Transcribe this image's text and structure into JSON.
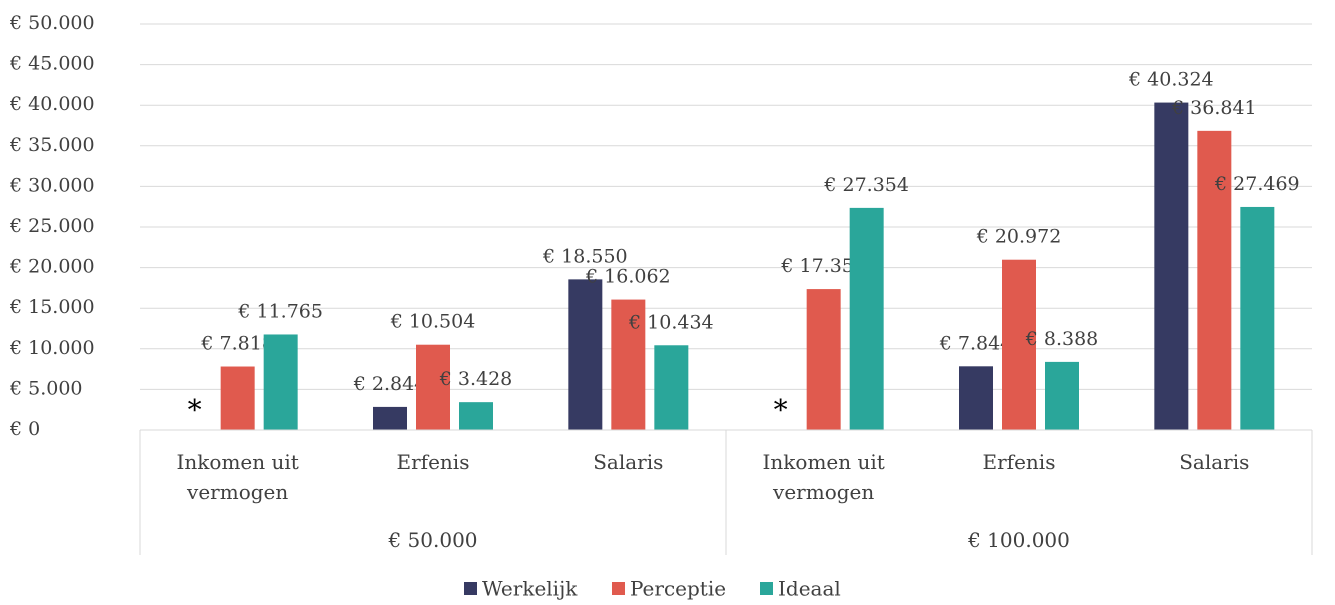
{
  "chart_data": {
    "type": "bar",
    "categories": [
      "Inkomen uit vermogen",
      "Erfenis",
      "Salaris",
      "Inkomen uit vermogen",
      "Erfenis",
      "Salaris"
    ],
    "groups": [
      "€ 50.000",
      "€ 100.000"
    ],
    "series": [
      {
        "name": "Werkelijk",
        "color": "#363a62",
        "values": [
          null,
          2844,
          18550,
          null,
          7844,
          40324
        ],
        "value_labels": [
          "*",
          "€ 2.844",
          "€ 18.550",
          "*",
          "€ 7.844",
          "€ 40.324"
        ]
      },
      {
        "name": "Perceptie",
        "color": "#e05a4e",
        "values": [
          7818,
          10504,
          16062,
          17354,
          20972,
          36841
        ],
        "value_labels": [
          "€ 7.818",
          "€ 10.504",
          "€ 16.062",
          "€ 17.354",
          "€ 20.972",
          "€ 36.841"
        ]
      },
      {
        "name": "Ideaal",
        "color": "#2aa69a",
        "values": [
          11765,
          3428,
          10434,
          27354,
          8388,
          27469
        ],
        "value_labels": [
          "€ 11.765",
          "€ 3.428",
          "€ 10.434",
          "€ 27.354",
          "€ 8.388",
          "€ 27.469"
        ]
      }
    ],
    "ylim": [
      0,
      50000
    ],
    "yticks": [
      {
        "value": 0,
        "label": "€ 0"
      },
      {
        "value": 5000,
        "label": "€ 5.000"
      },
      {
        "value": 10000,
        "label": "€ 10.000"
      },
      {
        "value": 15000,
        "label": "€ 15.000"
      },
      {
        "value": 20000,
        "label": "€ 20.000"
      },
      {
        "value": 25000,
        "label": "€ 25.000"
      },
      {
        "value": 30000,
        "label": "€ 30.000"
      },
      {
        "value": 35000,
        "label": "€ 35.000"
      },
      {
        "value": 40000,
        "label": "€ 40.000"
      },
      {
        "value": 45000,
        "label": "€ 45.000"
      },
      {
        "value": 50000,
        "label": "€ 50.000"
      }
    ],
    "grid": true,
    "legend": "bottom"
  }
}
